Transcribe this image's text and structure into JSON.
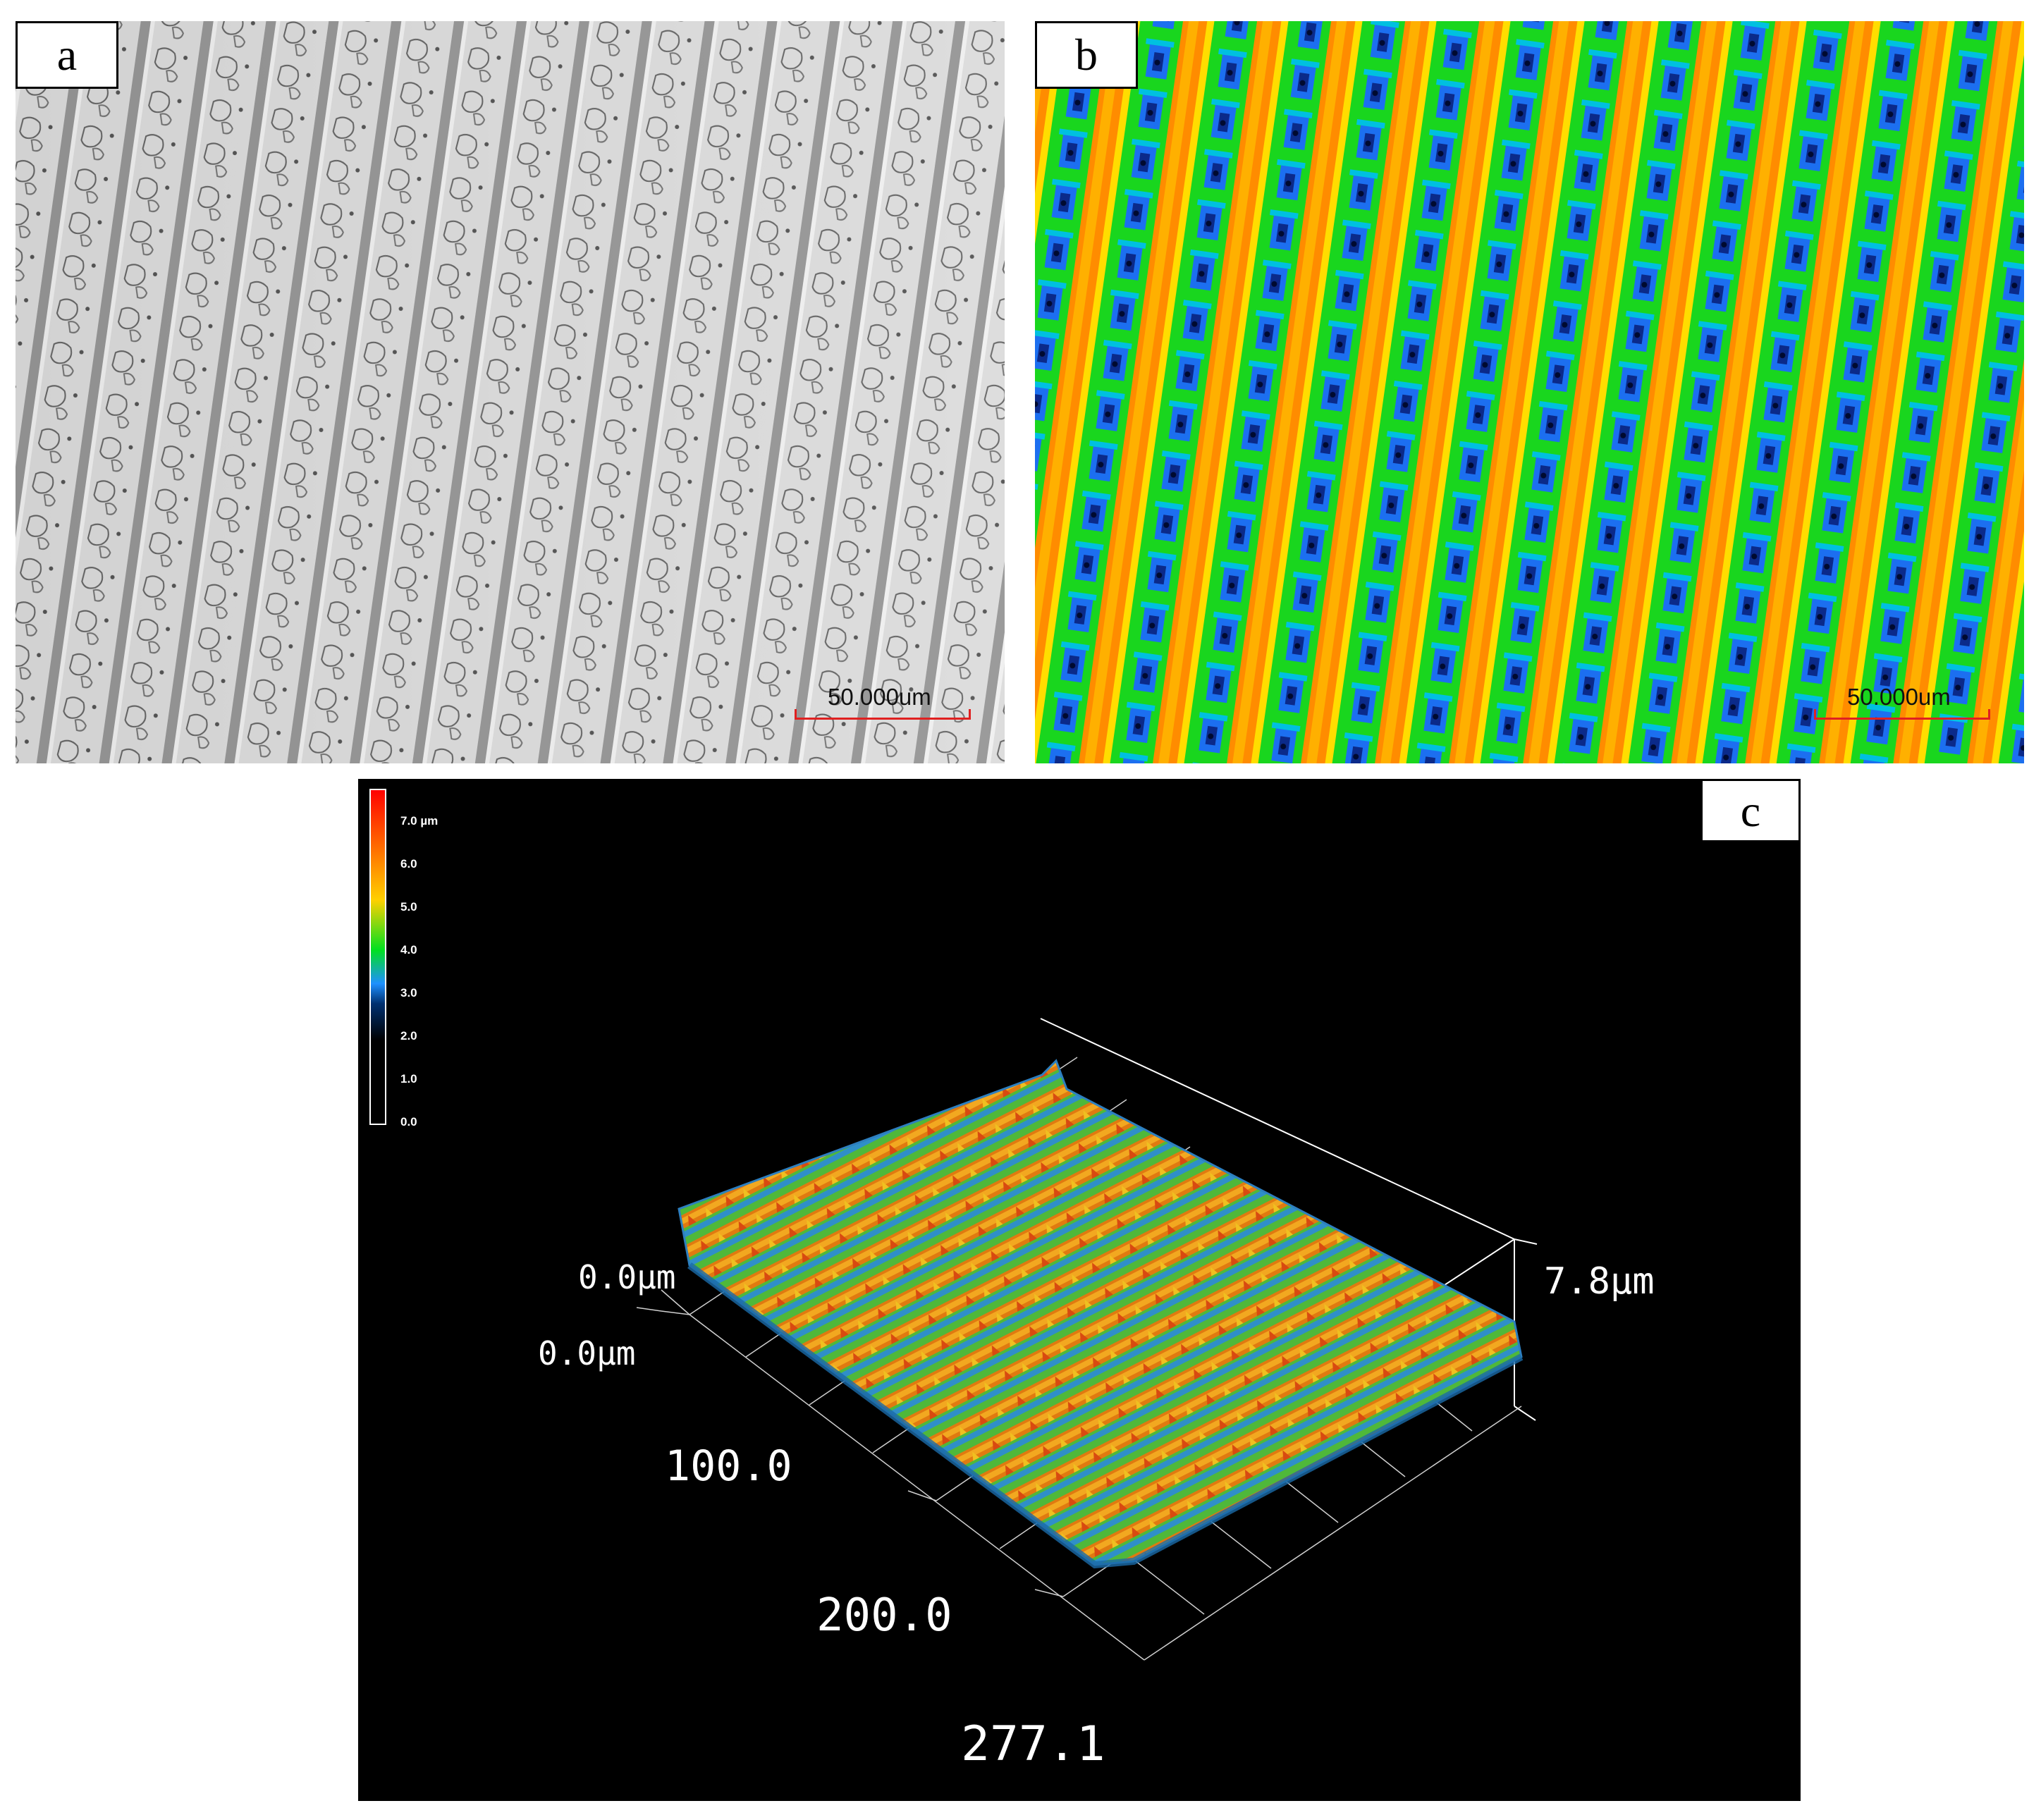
{
  "figure": {
    "panels": [
      {
        "tag": "a",
        "scale_bar": "50.000um"
      },
      {
        "tag": "b",
        "scale_bar": "50.000um"
      },
      {
        "tag": "c",
        "colorbar": {
          "ticks": [
            "7.0 µm",
            "6.0",
            "5.0",
            "4.0",
            "3.0",
            "2.0",
            "1.0",
            "0.0"
          ],
          "colors": [
            "#ff0000",
            "#ff6a00",
            "#ffd000",
            "#00e020",
            "#1e90ff",
            "#003070",
            "#000000"
          ]
        },
        "axes": {
          "origin_a": "0.0µm",
          "origin_b": "0.0µm",
          "tick_100": "100.0",
          "tick_200": "200.0",
          "tick_end": "277.1",
          "z_max": "7.8µm"
        }
      }
    ]
  }
}
